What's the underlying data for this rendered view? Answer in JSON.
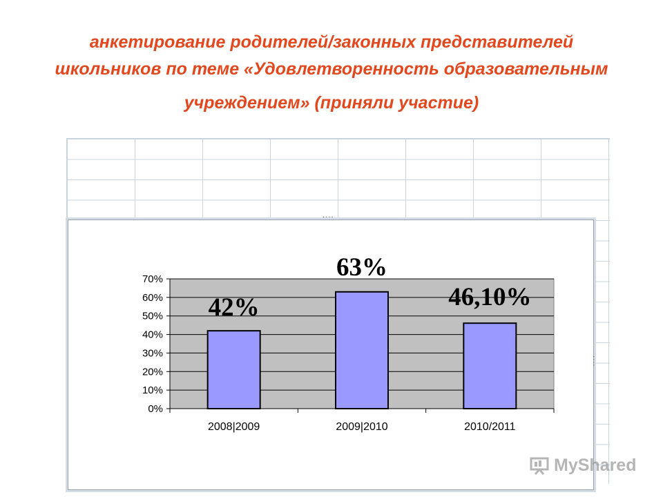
{
  "title": {
    "line1": "анкетирование родителей/законных представителей",
    "line2": "школьников по теме «Удовлетворенность образовательным",
    "line3": "учреждением» (приняли участие)"
  },
  "watermark": {
    "text": "MyShared",
    "icon": "presentation-icon"
  },
  "colors": {
    "title": "#e2471d",
    "bar_fill": "#9999ff",
    "plot_area": "#c0c0c0"
  },
  "chart_data": {
    "type": "bar",
    "categories": [
      "2008|2009",
      "2009|2010",
      "2010/2011"
    ],
    "values": [
      42,
      63,
      46.1
    ],
    "data_labels": [
      "42%",
      "63%",
      "46,10%"
    ],
    "y_tick_labels": [
      "0%",
      "10%",
      "20%",
      "30%",
      "40%",
      "50%",
      "60%",
      "70%"
    ],
    "ylim": [
      0,
      70
    ],
    "grid": true,
    "legend": "none"
  }
}
